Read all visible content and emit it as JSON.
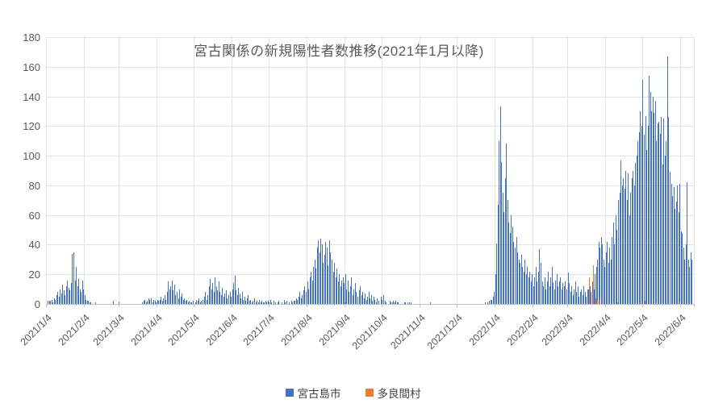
{
  "chart": {
    "title": "宮古関係の新規陽性者数推移(2021年1月以降)",
    "y_axis": {
      "min": 0,
      "max": 180,
      "step": 20,
      "ticks": [
        "0",
        "20",
        "40",
        "60",
        "80",
        "100",
        "120",
        "140",
        "160",
        "180"
      ]
    },
    "x_axis": {
      "tick_labels": [
        "2021/1/4",
        "2021/2/4",
        "2021/3/4",
        "2021/4/4",
        "2021/5/4",
        "2021/6/4",
        "2021/7/4",
        "2021/8/4",
        "2021/9/4",
        "2021/10/4",
        "2021/11/4",
        "2021/12/4",
        "2022/1/4",
        "2022/2/4",
        "2022/3/4",
        "2022/4/4",
        "2022/5/4",
        "2022/6/4"
      ]
    },
    "legend": [
      {
        "label": "宮古島市",
        "color": "#4472C4"
      },
      {
        "label": "多良間村",
        "color": "#ED7D31"
      }
    ]
  },
  "chart_data": {
    "type": "bar",
    "title": "宮古関係の新規陽性者数推移(2021年1月以降)",
    "xlabel": "",
    "ylabel": "",
    "ylim": [
      0,
      180
    ],
    "grid": true,
    "legend_position": "bottom",
    "frequency": "daily",
    "start_date": "2021/1/4",
    "end_date": "2022/6/12",
    "series": [
      {
        "name": "宮古島市",
        "color": "#4472C4",
        "values": [
          2,
          2,
          2,
          3,
          1,
          4,
          3,
          6,
          8,
          5,
          10,
          7,
          13,
          9,
          6,
          12,
          16,
          11,
          9,
          14,
          34,
          35,
          16,
          25,
          12,
          17,
          10,
          8,
          16,
          10,
          6,
          3,
          2,
          2,
          1,
          1,
          0,
          0,
          0,
          1,
          0,
          0,
          0,
          0,
          0,
          0,
          0,
          0,
          0,
          0,
          0,
          0,
          0,
          2,
          0,
          0,
          0,
          0,
          1,
          0,
          0,
          0,
          0,
          0,
          0,
          0,
          0,
          0,
          0,
          0,
          0,
          0,
          0,
          0,
          0,
          0,
          0,
          1,
          2,
          3,
          1,
          2,
          4,
          3,
          4,
          1,
          3,
          2,
          1,
          3,
          2,
          3,
          5,
          2,
          4,
          6,
          3,
          8,
          15,
          10,
          12,
          16,
          9,
          13,
          6,
          8,
          4,
          10,
          5,
          7,
          3,
          4,
          2,
          3,
          1,
          2,
          1,
          1,
          2,
          0,
          1,
          3,
          2,
          4,
          1,
          2,
          3,
          5,
          8,
          3,
          6,
          12,
          17,
          10,
          14,
          8,
          18,
          12,
          9,
          15,
          8,
          6,
          11,
          5,
          7,
          9,
          4,
          6,
          8,
          5,
          10,
          14,
          19,
          9,
          6,
          11,
          7,
          4,
          8,
          3,
          5,
          2,
          4,
          6,
          2,
          3,
          1,
          2,
          4,
          1,
          2,
          1,
          3,
          1,
          2,
          1,
          1,
          2,
          1,
          2,
          1,
          3,
          1,
          0,
          2,
          1,
          0,
          1,
          2,
          0,
          1,
          0,
          3,
          1,
          2,
          0,
          1,
          0,
          2,
          1,
          2,
          2,
          4,
          3,
          5,
          8,
          4,
          6,
          9,
          12,
          8,
          15,
          10,
          18,
          22,
          16,
          25,
          30,
          24,
          38,
          43,
          35,
          44,
          40,
          28,
          33,
          42,
          38,
          26,
          43,
          35,
          30,
          22,
          28,
          18,
          24,
          15,
          20,
          12,
          16,
          18,
          14,
          20,
          10,
          16,
          8,
          12,
          18,
          6,
          10,
          14,
          8,
          5,
          9,
          12,
          6,
          8,
          4,
          7,
          3,
          5,
          8,
          4,
          6,
          2,
          5,
          3,
          1,
          4,
          2,
          0,
          5,
          3,
          6,
          2,
          1,
          0,
          0,
          2,
          1,
          1,
          2,
          1,
          2,
          1,
          1,
          0,
          0,
          0,
          0,
          1,
          1,
          0,
          1,
          1,
          1,
          0,
          0,
          0,
          0,
          0,
          0,
          0,
          0,
          0,
          0,
          0,
          0,
          0,
          0,
          0,
          1,
          0,
          0,
          0,
          0,
          0,
          0,
          0,
          0,
          0,
          0,
          0,
          0,
          0,
          0,
          0,
          0,
          0,
          0,
          0,
          0,
          0,
          0,
          0,
          0,
          0,
          0,
          0,
          0,
          0,
          0,
          0,
          0,
          0,
          0,
          0,
          0,
          0,
          0,
          0,
          0,
          0,
          0,
          0,
          0,
          1,
          0,
          1,
          2,
          3,
          3,
          5,
          8,
          20,
          41,
          67,
          110,
          133,
          96,
          75,
          62,
          85,
          108,
          70,
          55,
          48,
          60,
          52,
          42,
          38,
          45,
          35,
          30,
          28,
          33,
          25,
          22,
          30,
          20,
          25,
          18,
          22,
          15,
          20,
          12,
          18,
          25,
          15,
          22,
          37,
          28,
          15,
          12,
          18,
          10,
          15,
          22,
          12,
          18,
          25,
          14,
          10,
          16,
          20,
          12,
          15,
          18,
          10,
          14,
          12,
          15,
          10,
          21,
          14,
          8,
          12,
          6,
          10,
          15,
          8,
          12,
          5,
          8,
          10,
          6,
          12,
          8,
          5,
          10,
          10,
          12,
          8,
          15,
          10,
          20,
          25,
          30,
          42,
          38,
          45,
          40,
          30,
          25,
          35,
          42,
          28,
          38,
          30,
          45,
          55,
          40,
          60,
          50,
          70,
          75,
          97,
          80,
          85,
          78,
          90,
          70,
          88,
          60,
          75,
          85,
          90,
          80,
          95,
          100,
          110,
          116,
          130,
          120,
          151,
          114,
          127,
          104,
          120,
          154,
          143,
          130,
          140,
          129,
          137,
          110,
          122,
          123,
          115,
          126,
          94,
          125,
          100,
          110,
          167,
          126,
          89,
          81,
          73,
          79,
          64,
          69,
          80,
          62,
          81,
          49,
          48,
          38,
          30,
          40,
          82,
          30,
          25,
          35,
          30
        ]
      },
      {
        "name": "多良間村",
        "color": "#ED7D31",
        "sparse": {
          "2021/9/2": 1,
          "2022/3/20": 18,
          "2022/3/23": 26,
          "2022/3/25": 4,
          "2022/3/26": 2,
          "2022/3/28": 3,
          "2022/4/12": 1,
          "2022/5/4": 2,
          "2022/5/13": 1,
          "2022/6/1": 1
        }
      }
    ]
  }
}
